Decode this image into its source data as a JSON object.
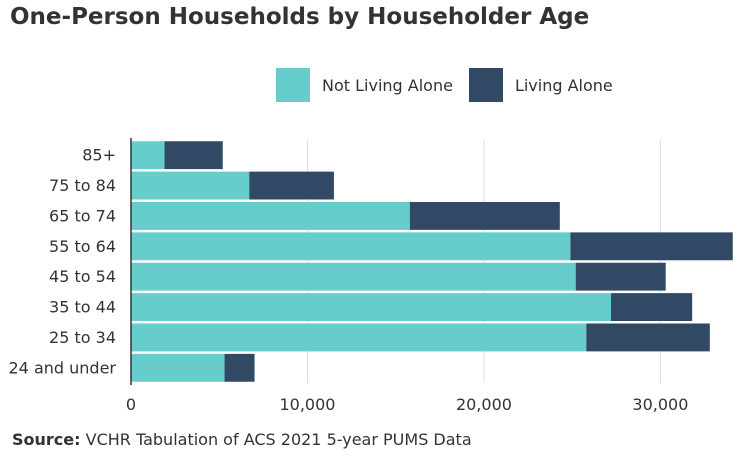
{
  "chart_data": {
    "type": "bar",
    "orientation": "horizontal",
    "stacked": true,
    "title": "One-Person Households by Householder  Age",
    "categories": [
      "85+",
      "75 to 84",
      "65 to 74",
      "55 to 64",
      "45 to 54",
      "35 to 44",
      "25 to 34",
      "24 and under"
    ],
    "series": [
      {
        "name": "Not Living Alone",
        "color": "#66cdcc",
        "values": [
          1900,
          6700,
          15800,
          24900,
          25200,
          27200,
          25800,
          5300
        ]
      },
      {
        "name": "Living Alone",
        "color": "#324966",
        "values": [
          3300,
          4800,
          8500,
          9200,
          5100,
          4600,
          7000,
          1700
        ]
      }
    ],
    "xlim": [
      0,
      34000
    ],
    "xticks": [
      0,
      10000,
      20000,
      30000
    ],
    "xtick_labels": [
      "0",
      "10,000",
      "20,000",
      "30,000"
    ],
    "xlabel": "",
    "ylabel": "",
    "grid": "vertical",
    "legend_position": "top"
  },
  "source": {
    "label": "Source:",
    "text": " VCHR Tabulation of ACS 2021 5-year PUMS Data"
  }
}
